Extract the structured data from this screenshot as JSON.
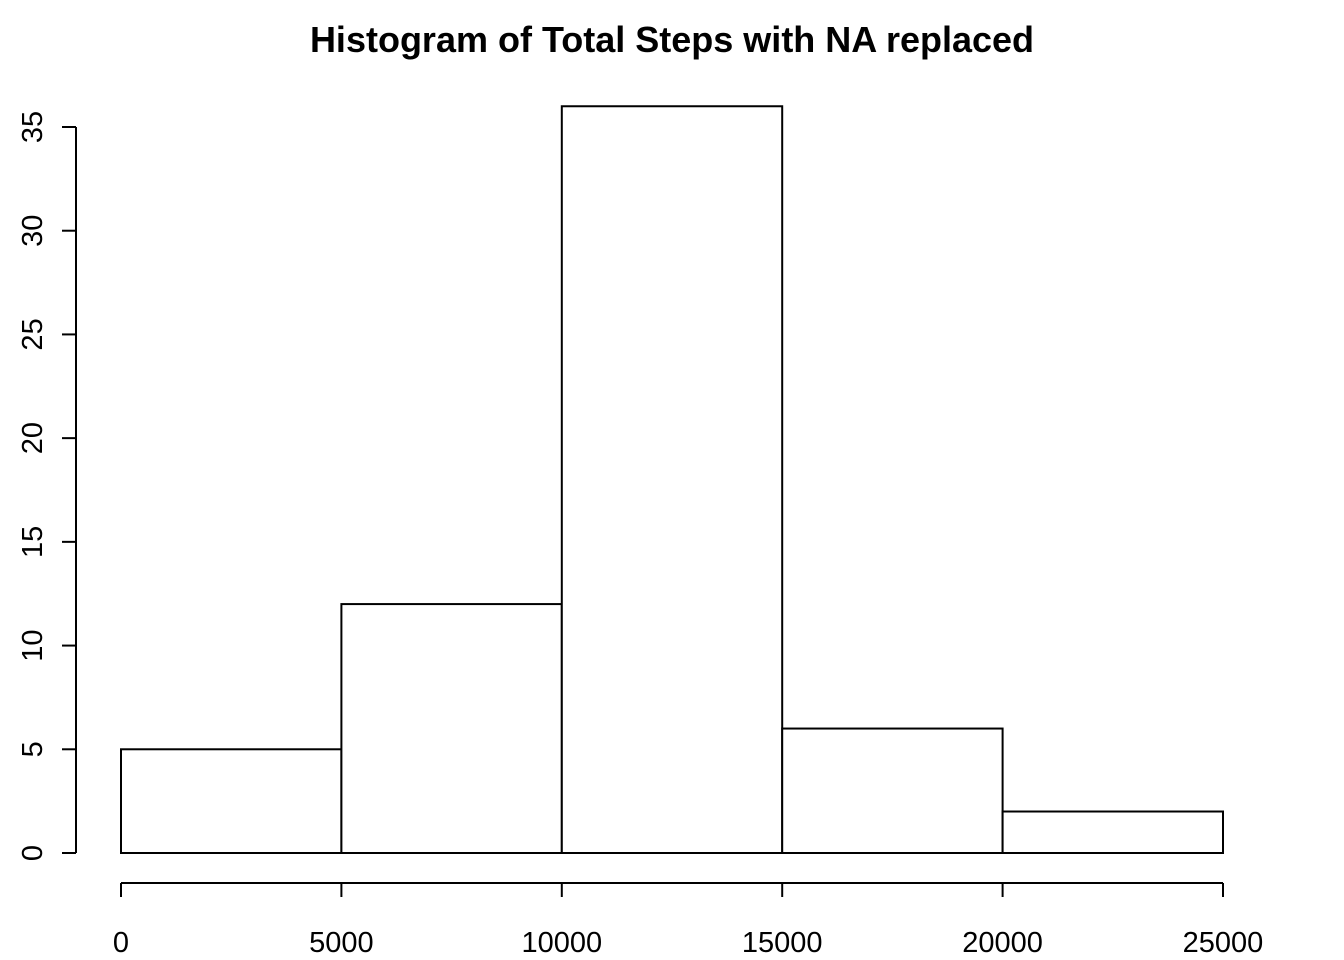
{
  "chart_data": {
    "type": "bar",
    "title": "Histogram of Total Steps with NA replaced",
    "xlabel": "",
    "ylabel": "",
    "bins": [
      {
        "from": 0,
        "to": 5000,
        "count": 5
      },
      {
        "from": 5000,
        "to": 10000,
        "count": 12
      },
      {
        "from": 10000,
        "to": 15000,
        "count": 36
      },
      {
        "from": 15000,
        "to": 20000,
        "count": 6
      },
      {
        "from": 20000,
        "to": 25000,
        "count": 2
      }
    ],
    "xlim": [
      0,
      25000
    ],
    "ylim": [
      0,
      36
    ],
    "x_ticks": [
      {
        "value": 0,
        "label": "0"
      },
      {
        "value": 5000,
        "label": "5000"
      },
      {
        "value": 10000,
        "label": "10000"
      },
      {
        "value": 15000,
        "label": "15000"
      },
      {
        "value": 20000,
        "label": "20000"
      },
      {
        "value": 25000,
        "label": "25000"
      }
    ],
    "y_ticks": [
      {
        "value": 0,
        "label": "0"
      },
      {
        "value": 5,
        "label": "5"
      },
      {
        "value": 10,
        "label": "10"
      },
      {
        "value": 15,
        "label": "15"
      },
      {
        "value": 20,
        "label": "20"
      },
      {
        "value": 25,
        "label": "25"
      },
      {
        "value": 30,
        "label": "30"
      },
      {
        "value": 35,
        "label": "35"
      }
    ],
    "grid": false,
    "legend": "none",
    "bar_fill": "#ffffff",
    "bar_stroke": "#000000"
  }
}
